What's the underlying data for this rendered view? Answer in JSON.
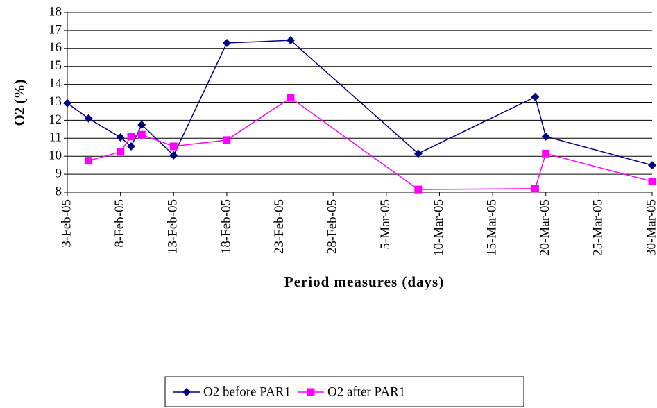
{
  "chart_data": {
    "type": "line",
    "x_label": "Period measures (days)",
    "y_label": "O2 (%)",
    "xlim": [
      "2005-02-03",
      "2005-03-30"
    ],
    "xticks": [
      {
        "value": "2005-02-03",
        "label": "3-Feb-05"
      },
      {
        "value": "2005-02-08",
        "label": "8-Feb-05"
      },
      {
        "value": "2005-02-13",
        "label": "13-Feb-05"
      },
      {
        "value": "2005-02-18",
        "label": "18-Feb-05"
      },
      {
        "value": "2005-02-23",
        "label": "23-Feb-05"
      },
      {
        "value": "2005-02-28",
        "label": "28-Feb-05"
      },
      {
        "value": "2005-03-05",
        "label": "5-Mar-05"
      },
      {
        "value": "2005-03-10",
        "label": "10-Mar-05"
      },
      {
        "value": "2005-03-15",
        "label": "15-Mar-05"
      },
      {
        "value": "2005-03-20",
        "label": "20-Mar-05"
      },
      {
        "value": "2005-03-25",
        "label": "25-Mar-05"
      },
      {
        "value": "2005-03-30",
        "label": "30-Mar-05"
      }
    ],
    "ylim": [
      8,
      18
    ],
    "yticks": [
      8,
      9,
      10,
      11,
      12,
      13,
      14,
      15,
      16,
      17,
      18
    ],
    "grid": true,
    "legend": "bottom",
    "series": [
      {
        "name": "O2 before PAR1",
        "color": "#000080",
        "marker": "diamond",
        "x": [
          "2005-02-03",
          "2005-02-05",
          "2005-02-08",
          "2005-02-09",
          "2005-02-10",
          "2005-02-13",
          "2005-02-18",
          "2005-02-24",
          "2005-03-08",
          "2005-03-19",
          "2005-03-20",
          "2005-03-30"
        ],
        "values": [
          12.95,
          12.1,
          11.05,
          10.55,
          11.75,
          10.05,
          16.3,
          16.45,
          10.15,
          13.3,
          11.1,
          9.5
        ]
      },
      {
        "name": "O2 after PAR1",
        "color": "#ff00ff",
        "marker": "square",
        "x": [
          "2005-02-05",
          "2005-02-08",
          "2005-02-09",
          "2005-02-10",
          "2005-02-13",
          "2005-02-18",
          "2005-02-24",
          "2005-03-08",
          "2005-03-19",
          "2005-03-20",
          "2005-03-30"
        ],
        "values": [
          9.75,
          10.25,
          11.1,
          11.2,
          10.55,
          10.9,
          13.25,
          8.15,
          8.2,
          10.15,
          8.6
        ]
      }
    ]
  }
}
